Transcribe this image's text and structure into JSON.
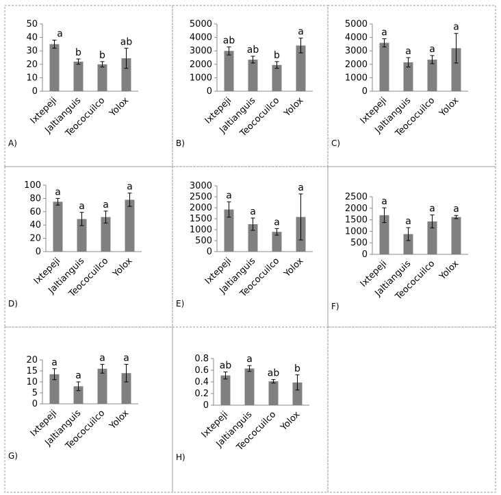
{
  "chart_data": [
    {
      "type": "bar",
      "panel_label": "A)",
      "categories": [
        "Ixtepeji",
        "Jaltianguis",
        "Teococuilco",
        "Yolox"
      ],
      "values": [
        35,
        22,
        20,
        24.5
      ],
      "errors": [
        3,
        2,
        2,
        7.5
      ],
      "annotations": [
        "a",
        "b",
        "b",
        "ab"
      ],
      "color": "#808080",
      "ylim": [
        0,
        50
      ],
      "yticks": [
        0,
        10,
        20,
        30,
        40,
        50
      ]
    },
    {
      "type": "bar",
      "panel_label": "B)",
      "categories": [
        "Ixtepeji",
        "Jaltianguis",
        "Teococuilco",
        "Yolox"
      ],
      "values": [
        3000,
        2350,
        1950,
        3400
      ],
      "errors": [
        300,
        250,
        250,
        550
      ],
      "annotations": [
        "ab",
        "ab",
        "b",
        "a"
      ],
      "color": "#808080",
      "ylim": [
        0,
        5000
      ],
      "yticks": [
        0,
        1000,
        2000,
        3000,
        4000,
        5000
      ]
    },
    {
      "type": "bar",
      "panel_label": "C)",
      "categories": [
        "Ixtepeji",
        "Jaltianguis",
        "Teococuilco",
        "Yolox"
      ],
      "values": [
        3600,
        2150,
        2350,
        3200
      ],
      "errors": [
        300,
        350,
        300,
        1100
      ],
      "annotations": [
        "a",
        "a",
        "a",
        "a"
      ],
      "color": "#808080",
      "ylim": [
        0,
        5000
      ],
      "yticks": [
        0,
        1000,
        2000,
        3000,
        4000,
        5000
      ]
    },
    {
      "type": "bar",
      "panel_label": "D)",
      "categories": [
        "Ixtepeji",
        "Jaltianguis",
        "Teococuilco",
        "Yolox"
      ],
      "values": [
        75,
        49,
        52,
        78
      ],
      "errors": [
        5,
        10,
        9,
        10
      ],
      "annotations": [
        "a",
        "a",
        "a",
        "a"
      ],
      "color": "#808080",
      "ylim": [
        0,
        100
      ],
      "yticks": [
        0,
        20,
        40,
        60,
        80,
        100
      ]
    },
    {
      "type": "bar",
      "panel_label": "E)",
      "categories": [
        "Ixtepeji",
        "Jaltianguis",
        "Teococuilco",
        "Yolox"
      ],
      "values": [
        1920,
        1250,
        900,
        1580
      ],
      "errors": [
        350,
        280,
        150,
        1050
      ],
      "annotations": [
        "a",
        "a",
        "a",
        "a"
      ],
      "color": "#808080",
      "ylim": [
        0,
        3000
      ],
      "yticks": [
        0,
        500,
        1000,
        1500,
        2000,
        2500,
        3000
      ]
    },
    {
      "type": "bar",
      "panel_label": "F)",
      "categories": [
        "Ixtepeji",
        "Jaltianguis",
        "Teococuilco",
        "Yolox"
      ],
      "values": [
        1700,
        880,
        1430,
        1620
      ],
      "errors": [
        320,
        280,
        280,
        70
      ],
      "annotations": [
        "a",
        "a",
        "a",
        "a"
      ],
      "color": "#808080",
      "ylim": [
        0,
        2500
      ],
      "yticks": [
        0,
        500,
        1000,
        1500,
        2000,
        2500
      ]
    },
    {
      "type": "bar",
      "panel_label": "G)",
      "categories": [
        "Ixtepeji",
        "Jaltianguis",
        "Teococuilco",
        "Yolox"
      ],
      "values": [
        13.5,
        8,
        16,
        14
      ],
      "errors": [
        2.5,
        2,
        2,
        4
      ],
      "annotations": [
        "a",
        "a",
        "a",
        "a"
      ],
      "color": "#808080",
      "ylim": [
        0,
        20
      ],
      "yticks": [
        0,
        5,
        10,
        15,
        20
      ]
    },
    {
      "type": "bar",
      "panel_label": "H)",
      "categories": [
        "Ixtepeji",
        "Jaltianguis",
        "Teococuilco",
        "Yolox"
      ],
      "values": [
        0.51,
        0.63,
        0.41,
        0.39
      ],
      "errors": [
        0.06,
        0.05,
        0.03,
        0.13
      ],
      "annotations": [
        "ab",
        "a",
        "ab",
        "b"
      ],
      "color": "#808080",
      "ylim": [
        0,
        0.8
      ],
      "yticks": [
        0,
        0.2,
        0.4,
        0.6,
        0.8
      ]
    }
  ]
}
